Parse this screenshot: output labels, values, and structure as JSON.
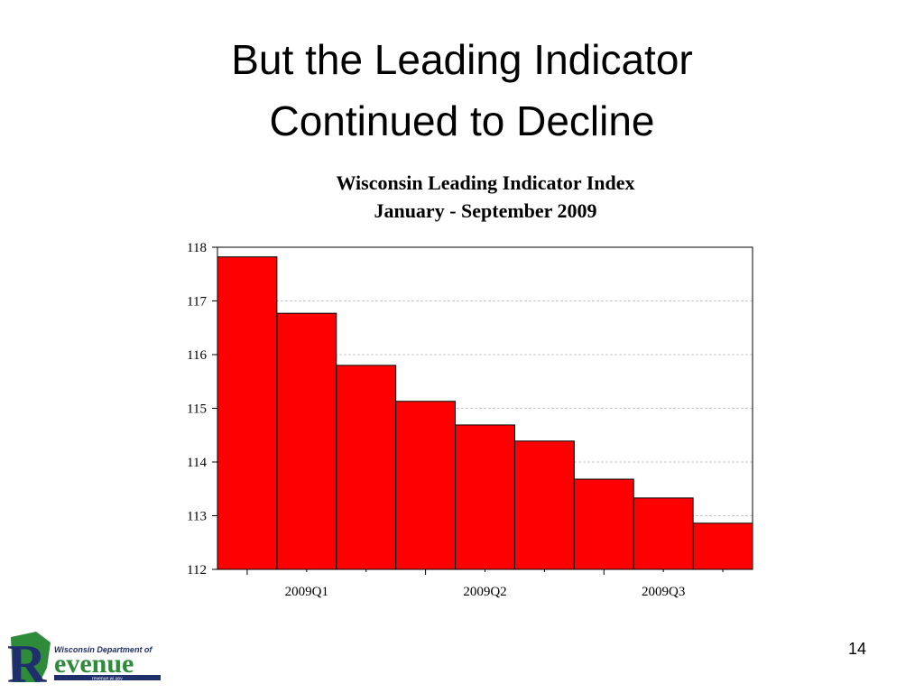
{
  "slide": {
    "title_lines": [
      "But the Leading Indicator",
      "Continued to Decline"
    ],
    "page_number": "14",
    "logo": {
      "department": "Wisconsin Department of",
      "initial": "R",
      "word": "evenue",
      "url": "revenue.wi.gov"
    }
  },
  "chart_data": {
    "type": "bar",
    "title": "Wisconsin Leading Indicator Index",
    "subtitle": "January - September 2009",
    "categories": [
      null,
      "2009Q1",
      null,
      null,
      "2009Q2",
      null,
      null,
      "2009Q3",
      null
    ],
    "values": [
      117.82,
      116.77,
      115.8,
      115.13,
      114.69,
      114.39,
      113.68,
      113.33,
      112.86
    ],
    "color": "#ff0000",
    "ylim": [
      112,
      118
    ],
    "yticks": [
      112,
      113,
      114,
      115,
      116,
      117,
      118
    ],
    "grid": true
  }
}
